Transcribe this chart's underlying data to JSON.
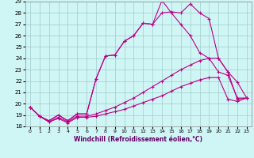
{
  "xlabel": "Windchill (Refroidissement éolien,°C)",
  "xlim": [
    -0.5,
    23.5
  ],
  "ylim": [
    18,
    29
  ],
  "xticks": [
    0,
    1,
    2,
    3,
    4,
    5,
    6,
    7,
    8,
    9,
    10,
    11,
    12,
    13,
    14,
    15,
    16,
    17,
    18,
    19,
    20,
    21,
    22,
    23
  ],
  "yticks": [
    18,
    19,
    20,
    21,
    22,
    23,
    24,
    25,
    26,
    27,
    28,
    29
  ],
  "background_color": "#d0f5f5",
  "grid_color": "#a0cccc",
  "line_color": "#bb0088",
  "series": [
    {
      "x": [
        0,
        1,
        2,
        3,
        4,
        5,
        6,
        7,
        8,
        9,
        10,
        11,
        12,
        13,
        14,
        15,
        16,
        17,
        18,
        19,
        20,
        21,
        22,
        23
      ],
      "y": [
        19.7,
        18.9,
        18.5,
        19.0,
        18.5,
        19.1,
        19.1,
        22.2,
        24.2,
        24.3,
        25.5,
        26.0,
        27.1,
        27.0,
        28.0,
        28.1,
        28.0,
        28.8,
        28.0,
        27.5,
        24.0,
        22.8,
        20.4,
        20.5
      ]
    },
    {
      "x": [
        0,
        1,
        2,
        3,
        4,
        5,
        6,
        7,
        8,
        9,
        10,
        11,
        12,
        13,
        14,
        15,
        16,
        17,
        18,
        19,
        20,
        21,
        22,
        23
      ],
      "y": [
        19.7,
        18.9,
        18.5,
        19.0,
        18.5,
        19.1,
        19.1,
        22.2,
        24.2,
        24.3,
        25.5,
        26.0,
        27.1,
        27.0,
        29.1,
        28.0,
        27.0,
        26.0,
        24.5,
        24.0,
        24.0,
        22.8,
        21.9,
        20.5
      ]
    },
    {
      "x": [
        0,
        1,
        2,
        3,
        4,
        5,
        6,
        7,
        8,
        9,
        10,
        11,
        12,
        13,
        14,
        15,
        16,
        17,
        18,
        19,
        20,
        21,
        22,
        23
      ],
      "y": [
        19.7,
        18.9,
        18.4,
        18.8,
        18.4,
        18.9,
        18.9,
        19.1,
        19.4,
        19.7,
        20.1,
        20.5,
        21.0,
        21.5,
        22.0,
        22.5,
        23.0,
        23.4,
        23.8,
        24.0,
        22.8,
        22.5,
        20.5,
        20.5
      ]
    },
    {
      "x": [
        0,
        1,
        2,
        3,
        4,
        5,
        6,
        7,
        8,
        9,
        10,
        11,
        12,
        13,
        14,
        15,
        16,
        17,
        18,
        19,
        20,
        21,
        22,
        23
      ],
      "y": [
        19.7,
        18.9,
        18.4,
        18.7,
        18.3,
        18.8,
        18.8,
        18.9,
        19.1,
        19.3,
        19.5,
        19.8,
        20.1,
        20.4,
        20.7,
        21.1,
        21.5,
        21.8,
        22.1,
        22.3,
        22.3,
        20.4,
        20.2,
        20.5
      ]
    }
  ]
}
